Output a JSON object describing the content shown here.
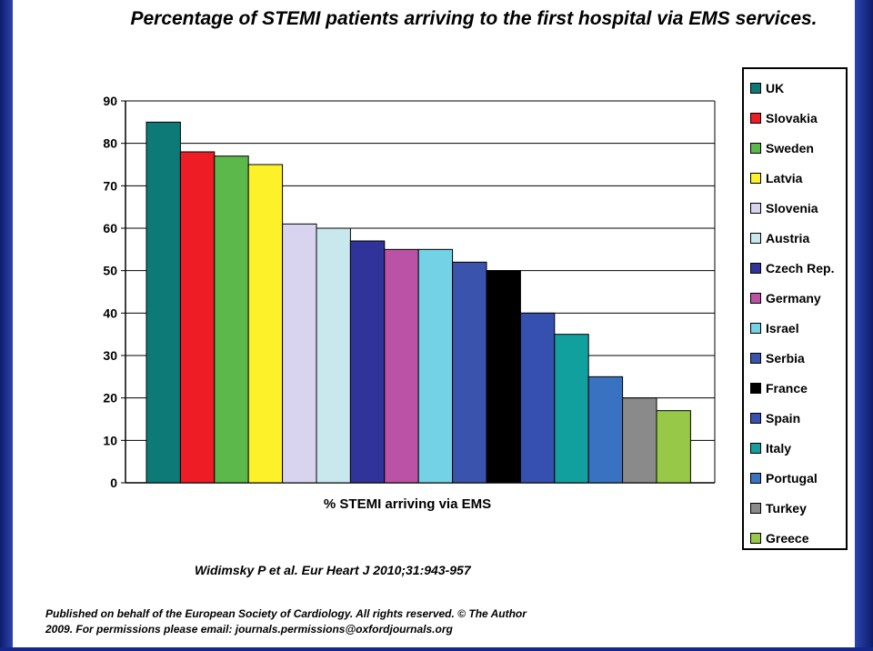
{
  "chart_data": {
    "type": "bar",
    "title": "Percentage of STEMI patients arriving to the first hospital via EMS services.",
    "xlabel": "% STEMI arriving via EMS",
    "ylabel": "",
    "ylim": [
      0,
      90
    ],
    "yticks": [
      0,
      10,
      20,
      30,
      40,
      50,
      60,
      70,
      80,
      90
    ],
    "grid": true,
    "legend_position": "right",
    "categories": [
      "UK",
      "Slovakia",
      "Sweden",
      "Latvia",
      "Slovenia",
      "Austria",
      "Czech Rep.",
      "Germany",
      "Israel",
      "Serbia",
      "France",
      "Spain",
      "Italy",
      "Portugal",
      "Turkey",
      "Greece"
    ],
    "values": [
      85,
      78,
      77,
      75,
      61,
      60,
      57,
      55,
      55,
      52,
      50,
      40,
      35,
      25,
      20,
      17
    ],
    "colors": [
      "#0e7a77",
      "#ee1c25",
      "#5cb84a",
      "#fdf12a",
      "#d8d3ef",
      "#c9e8ee",
      "#30339a",
      "#bb52a6",
      "#74d2e6",
      "#3a54ae",
      "#000000",
      "#3650b0",
      "#11a09e",
      "#3872c0",
      "#8a8a8a",
      "#98c847"
    ]
  },
  "citation": "Widimsky P et al. Eur Heart J 2010;31:943-957",
  "publisher_notice": "Published on behalf of the European Society of Cardiology. All rights reserved. © The Author 2009. For permissions please email: journals.permissions@oxfordjournals.org"
}
